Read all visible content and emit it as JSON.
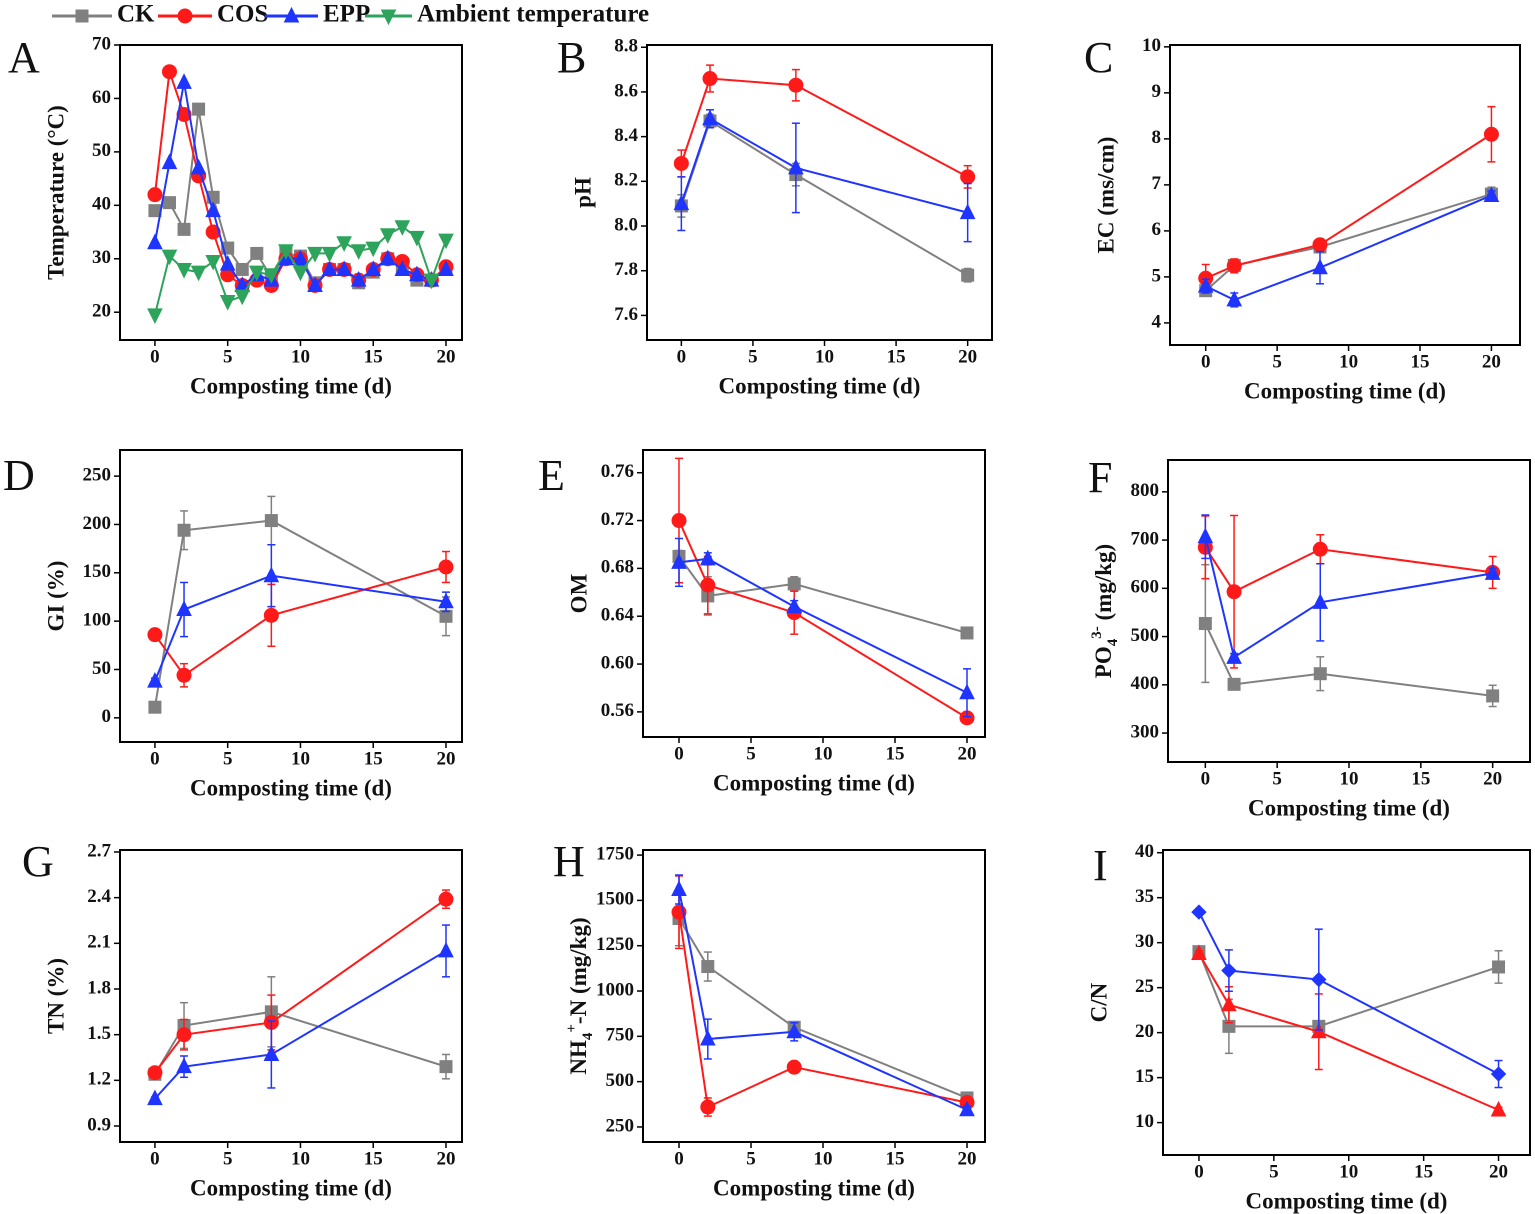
{
  "chart_data": [
    {
      "type": "line",
      "panel": "A",
      "xlabel": "Composting time (d)",
      "ylabel": "Temperature (°C)",
      "x": [
        0,
        1,
        2,
        3,
        4,
        5,
        6,
        7,
        8,
        9,
        10,
        11,
        12,
        13,
        14,
        15,
        16,
        17,
        18,
        19,
        20
      ],
      "xlim": [
        -2.4,
        21.1
      ],
      "xticks": [
        0,
        5,
        10,
        15,
        20
      ],
      "ylim": [
        14.8,
        70
      ],
      "yticks": [
        20,
        30,
        40,
        50,
        60,
        70
      ],
      "series": [
        {
          "name": "CK",
          "color": "#808080",
          "marker": "square",
          "values": [
            39,
            40.5,
            35.5,
            58,
            41.5,
            32,
            28,
            31,
            26.5,
            31,
            30.5,
            25.5,
            28,
            28,
            25.5,
            27.5,
            30,
            28.5,
            26,
            26,
            28
          ]
        },
        {
          "name": "COS",
          "color": "#ff1a1a",
          "marker": "circle",
          "values": [
            42,
            65,
            57,
            45.5,
            35,
            27,
            25,
            26,
            25,
            30,
            30,
            25,
            28,
            28,
            26,
            28,
            30,
            29.5,
            27,
            26,
            28.5
          ]
        },
        {
          "name": "EPP",
          "color": "#1f35ff",
          "marker": "triangle-up",
          "values": [
            33,
            48,
            63,
            47,
            39,
            29,
            25,
            27,
            26,
            30,
            30,
            25,
            28,
            28,
            26,
            28,
            30,
            28,
            27,
            26,
            28
          ]
        },
        {
          "name": "Ambient temperature",
          "color": "#2ea35c",
          "marker": "triangle-down",
          "values": [
            19.5,
            30.5,
            28,
            27.5,
            29.5,
            22,
            23,
            27.5,
            27,
            31.5,
            27.5,
            31,
            31,
            33,
            31.5,
            32,
            34.5,
            36,
            34,
            26,
            33.5
          ]
        }
      ]
    },
    {
      "type": "line",
      "panel": "B",
      "xlabel": "Composting time (d)",
      "ylabel": "pH",
      "x": [
        0,
        2,
        8,
        20
      ],
      "xlim": [
        -2.4,
        21.7
      ],
      "xticks": [
        0,
        5,
        10,
        15,
        20
      ],
      "ylim": [
        7.49,
        8.81
      ],
      "yticks": [
        7.6,
        7.8,
        {
          "value": 8,
          "label": "8.0"
        },
        8.2,
        8.4,
        8.6,
        8.8
      ],
      "series": [
        {
          "color": "#808080",
          "marker": "square",
          "values": [
            8.09,
            8.47,
            8.23,
            7.78
          ],
          "errors": [
            0.05,
            0.03,
            0.05,
            0.03
          ]
        },
        {
          "color": "#ff1a1a",
          "marker": "circle",
          "values": [
            8.28,
            8.66,
            8.63,
            8.22
          ],
          "errors": [
            0.06,
            0.06,
            0.07,
            0.05
          ]
        },
        {
          "color": "#1f35ff",
          "marker": "triangle-up",
          "values": [
            8.1,
            8.48,
            8.26,
            8.06
          ],
          "errors": [
            0.12,
            0.04,
            0.2,
            0.13
          ]
        }
      ]
    },
    {
      "type": "line",
      "panel": "C",
      "xlabel": "Composting time (d)",
      "ylabel": "EC (ms/cm)",
      "x": [
        0,
        2,
        8,
        20
      ],
      "xlim": [
        -2.5,
        22
      ],
      "xticks": [
        0,
        5,
        10,
        15,
        20
      ],
      "ylim": [
        3.52,
        10.04
      ],
      "yticks": [
        4,
        5,
        6,
        7,
        8,
        9,
        10
      ],
      "series": [
        {
          "color": "#808080",
          "marker": "square",
          "values": [
            4.7,
            5.25,
            5.65,
            6.8
          ],
          "errors": [
            0.05,
            0.1,
            0.05,
            0.15
          ]
        },
        {
          "color": "#ff1a1a",
          "marker": "circle",
          "values": [
            4.97,
            5.24,
            5.7,
            8.1
          ],
          "errors": [
            0.3,
            0.15,
            0.1,
            0.6
          ]
        },
        {
          "color": "#1f35ff",
          "marker": "triangle-up",
          "values": [
            4.8,
            4.5,
            5.2,
            6.77
          ],
          "errors": [
            0.15,
            0.15,
            0.35,
            0.1
          ]
        }
      ]
    },
    {
      "type": "line",
      "panel": "D",
      "xlabel": "Composting time (d)",
      "ylabel": "GI (%)",
      "x": [
        0,
        2,
        8,
        20
      ],
      "xlim": [
        -2.4,
        21.1
      ],
      "xticks": [
        0,
        5,
        10,
        15,
        20
      ],
      "ylim": [
        -25,
        277
      ],
      "yticks": [
        0,
        50,
        100,
        150,
        200,
        250
      ],
      "series": [
        {
          "color": "#808080",
          "marker": "square",
          "values": [
            11,
            194,
            204,
            105
          ],
          "errors": [
            3,
            20,
            25,
            20
          ]
        },
        {
          "color": "#ff1a1a",
          "marker": "circle",
          "values": [
            86,
            44,
            106,
            156
          ],
          "errors": [
            3,
            12,
            32,
            16
          ]
        },
        {
          "color": "#1f35ff",
          "marker": "triangle-up",
          "values": [
            38,
            112,
            147,
            120
          ],
          "errors": [
            3,
            28,
            32,
            10
          ]
        }
      ]
    },
    {
      "type": "line",
      "panel": "E",
      "xlabel": "Composting time (d)",
      "ylabel": "OM",
      "x": [
        0,
        2,
        8,
        20
      ],
      "xlim": [
        -2.5,
        21.25
      ],
      "xticks": [
        0,
        5,
        10,
        15,
        20
      ],
      "ylim": [
        0.539,
        0.779
      ],
      "yticks": [
        0.56,
        {
          "value": 0.6,
          "label": "0.60"
        },
        0.64,
        0.68,
        0.72,
        0.76
      ],
      "series": [
        {
          "color": "#808080",
          "marker": "square",
          "values": [
            0.69,
            0.657,
            0.667,
            0.626
          ],
          "errors": [
            0.005,
            0.016,
            0.006,
            0.003
          ]
        },
        {
          "color": "#ff1a1a",
          "marker": "circle",
          "values": [
            0.72,
            0.666,
            0.643,
            0.555
          ],
          "errors": [
            0.052,
            0.024,
            0.018,
            0.002
          ]
        },
        {
          "color": "#1f35ff",
          "marker": "triangle-up",
          "values": [
            0.685,
            0.688,
            0.648,
            0.576
          ],
          "errors": [
            0.02,
            0.005,
            0.005,
            0.02
          ]
        }
      ]
    },
    {
      "type": "line",
      "panel": "F",
      "xlabel": "Composting time (d)",
      "ylabel": [
        {
          "text": "PO"
        },
        {
          "text": "4",
          "shift": "sub"
        },
        {
          "text": "3-",
          "shift": "super"
        },
        {
          "text": " (mg/kg)"
        }
      ],
      "x": [
        0,
        2,
        8,
        20
      ],
      "xlim": [
        -2.6,
        22.6
      ],
      "xticks": [
        0,
        5,
        10,
        15,
        20
      ],
      "ylim": [
        240,
        866
      ],
      "yticks": [
        300,
        400,
        500,
        600,
        700,
        800
      ],
      "series": [
        {
          "color": "#808080",
          "marker": "square",
          "values": [
            527,
            401,
            423,
            377
          ],
          "errors": [
            122,
            8,
            35,
            22
          ]
        },
        {
          "color": "#ff1a1a",
          "marker": "circle",
          "values": [
            685,
            593,
            681,
            633
          ],
          "errors": [
            65,
            158,
            30,
            33
          ]
        },
        {
          "color": "#1f35ff",
          "marker": "triangle-up",
          "values": [
            707,
            457,
            571,
            631
          ],
          "errors": [
            45,
            8,
            80,
            10
          ]
        }
      ]
    },
    {
      "type": "line",
      "panel": "G",
      "xlabel": "Composting time (d)",
      "ylabel": "TN (%)",
      "x": [
        0,
        2,
        8,
        20
      ],
      "xlim": [
        -2.4,
        21.1
      ],
      "xticks": [
        0,
        5,
        10,
        15,
        20
      ],
      "ylim": [
        0.795,
        2.713
      ],
      "yticks": [
        0.9,
        1.2,
        1.5,
        1.8,
        2.1,
        2.4,
        2.7
      ],
      "series": [
        {
          "color": "#808080",
          "marker": "square",
          "values": [
            1.24,
            1.56,
            1.65,
            1.29
          ],
          "errors": [
            0.02,
            0.15,
            0.23,
            0.08
          ]
        },
        {
          "color": "#ff1a1a",
          "marker": "circle",
          "values": [
            1.25,
            1.5,
            1.58,
            2.39
          ],
          "errors": [
            0.02,
            0.1,
            0.18,
            0.06
          ]
        },
        {
          "color": "#1f35ff",
          "marker": "triangle-up",
          "values": [
            1.08,
            1.29,
            1.37,
            2.05
          ],
          "errors": [
            0.01,
            0.07,
            0.22,
            0.17
          ]
        }
      ]
    },
    {
      "type": "line",
      "panel": "H",
      "xlabel": "Composting time (d)",
      "ylabel": [
        {
          "text": "NH"
        },
        {
          "text": "4",
          "shift": "sub"
        },
        {
          "text": "+",
          "shift": "super"
        },
        {
          "text": "-N (mg/kg)"
        }
      ],
      "x": [
        0,
        2,
        8,
        20
      ],
      "xlim": [
        -2.5,
        21.25
      ],
      "xticks": [
        0,
        5,
        10,
        15,
        20
      ],
      "ylim": [
        167,
        1778
      ],
      "yticks": [
        250,
        500,
        750,
        1000,
        1250,
        1500,
        1750
      ],
      "series": [
        {
          "color": "#808080",
          "marker": "square",
          "values": [
            1400,
            1135,
            800,
            410
          ],
          "errors": [
            150,
            80,
            30,
            20
          ]
        },
        {
          "color": "#ff1a1a",
          "marker": "circle",
          "values": [
            1435,
            360,
            580,
            385
          ],
          "errors": [
            200,
            50,
            20,
            20
          ]
        },
        {
          "color": "#1f35ff",
          "marker": "triangle-up",
          "values": [
            1560,
            735,
            775,
            345
          ],
          "errors": [
            80,
            110,
            50,
            20
          ]
        }
      ]
    },
    {
      "type": "line",
      "panel": "I",
      "xlabel": "Composting time (d)",
      "ylabel": "C/N",
      "x": [
        0,
        2,
        8,
        20
      ],
      "xlim": [
        -2.4,
        22.1
      ],
      "xticks": [
        0,
        5,
        10,
        15,
        20
      ],
      "ylim": [
        6.4,
        40.3
      ],
      "yticks": [
        10,
        15,
        20,
        25,
        30,
        35,
        40
      ],
      "series": [
        {
          "color": "#808080",
          "marker": "square",
          "values": [
            29,
            20.7,
            20.7,
            27.3
          ],
          "errors": [
            0.3,
            3,
            0.5,
            1.8
          ]
        },
        {
          "color": "#ff1a1a",
          "marker": "triangle-up",
          "values": [
            28.8,
            23.1,
            20.1,
            11.4
          ],
          "errors": [
            0.3,
            2,
            4.2,
            0.3
          ]
        },
        {
          "color": "#1f35ff",
          "marker": "diamond",
          "values": [
            33.4,
            26.9,
            25.9,
            15.4
          ],
          "errors": [
            0.2,
            2.3,
            5.6,
            1.5
          ]
        }
      ]
    }
  ]
}
